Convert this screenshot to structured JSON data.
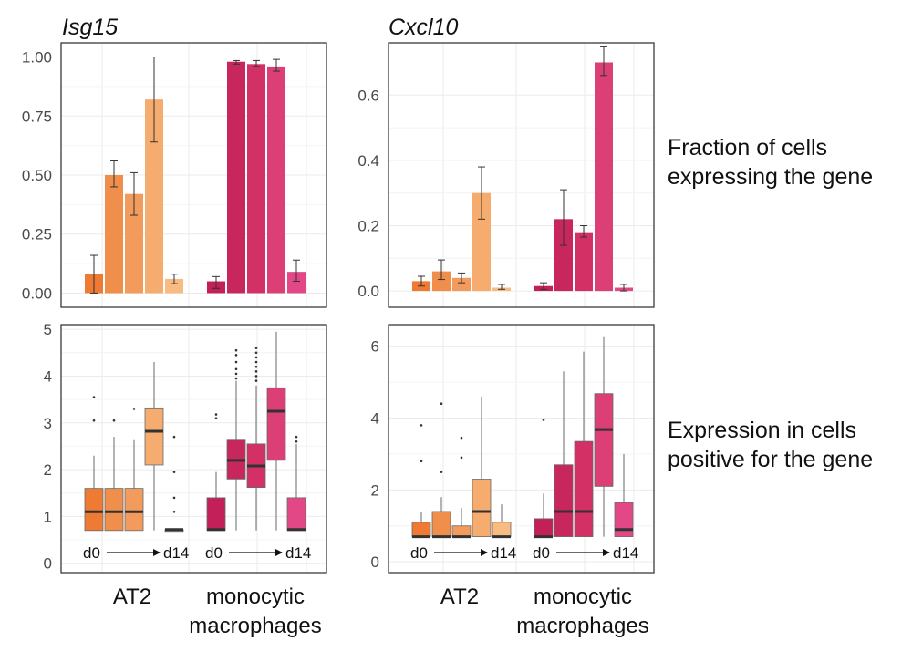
{
  "colors": {
    "at2": [
      "#EE7A33",
      "#F08E4B",
      "#F29B5C",
      "#F6AC6E",
      "#F8BB82"
    ],
    "macro": [
      "#C31F59",
      "#C7275D",
      "#D33066",
      "#DC3E76",
      "#E24885"
    ],
    "frame": "#3a3a3a",
    "grid": "#ebebeb",
    "errorbar": "#333333",
    "median": "#333333"
  },
  "row_labels": {
    "fraction": [
      "Fraction of cells",
      "expressing the gene"
    ],
    "expression": [
      "Expression in cells",
      "positive for the gene"
    ]
  },
  "category_labels": {
    "at2": [
      "AT2"
    ],
    "macro": [
      "monocytic",
      "macrophages"
    ]
  },
  "timeline": {
    "start": "d0",
    "end": "d14"
  },
  "chart_data": [
    {
      "type": "bar",
      "gene": "Isg15",
      "title": "Isg15",
      "ylim": [
        -0.06,
        1.06
      ],
      "yticks": [
        "0.00",
        "0.25",
        "0.50",
        "0.75",
        "1.00"
      ],
      "ytick_values": [
        0,
        0.25,
        0.5,
        0.75,
        1.0
      ],
      "groups": [
        {
          "name": "AT2",
          "values": [
            0.08,
            0.5,
            0.42,
            0.82,
            0.06
          ],
          "err_low": [
            0.0,
            0.45,
            0.33,
            0.64,
            0.04
          ],
          "err_high": [
            0.16,
            0.56,
            0.51,
            1.0,
            0.08
          ]
        },
        {
          "name": "monocytic macrophages",
          "values": [
            0.05,
            0.98,
            0.97,
            0.96,
            0.09
          ],
          "err_low": [
            0.02,
            0.97,
            0.96,
            0.94,
            0.05
          ],
          "err_high": [
            0.07,
            0.985,
            0.985,
            0.99,
            0.14
          ]
        }
      ]
    },
    {
      "type": "bar",
      "gene": "Cxcl10",
      "title": "Cxcl10",
      "ylim": [
        -0.05,
        0.76
      ],
      "yticks": [
        "0.0",
        "0.2",
        "0.4",
        "0.6"
      ],
      "ytick_values": [
        0,
        0.2,
        0.4,
        0.6
      ],
      "groups": [
        {
          "name": "AT2",
          "values": [
            0.03,
            0.06,
            0.04,
            0.3,
            0.01
          ],
          "err_low": [
            0.015,
            0.035,
            0.025,
            0.22,
            0.005
          ],
          "err_high": [
            0.045,
            0.095,
            0.055,
            0.38,
            0.02
          ]
        },
        {
          "name": "monocytic macrophages",
          "values": [
            0.015,
            0.22,
            0.18,
            0.7,
            0.01
          ],
          "err_low": [
            0.005,
            0.14,
            0.165,
            0.66,
            0.0
          ],
          "err_high": [
            0.025,
            0.31,
            0.2,
            0.75,
            0.02
          ]
        }
      ]
    },
    {
      "type": "box",
      "gene": "Isg15",
      "ylim": [
        -0.2,
        5.1
      ],
      "yticks": [
        "0",
        "1",
        "2",
        "3",
        "4",
        "5"
      ],
      "ytick_values": [
        0,
        1,
        2,
        3,
        4,
        5
      ],
      "groups": [
        {
          "name": "AT2",
          "boxes": [
            {
              "min": 0.7,
              "q1": 0.7,
              "median": 1.1,
              "q3": 1.6,
              "max": 2.3,
              "outliers": [
                3.05,
                3.55
              ]
            },
            {
              "min": 0.7,
              "q1": 0.7,
              "median": 1.1,
              "q3": 1.6,
              "max": 2.7,
              "outliers": [
                3.05
              ]
            },
            {
              "min": 0.7,
              "q1": 0.7,
              "median": 1.1,
              "q3": 1.6,
              "max": 2.65,
              "outliers": [
                3.3
              ]
            },
            {
              "min": 0.7,
              "q1": 2.1,
              "median": 2.82,
              "q3": 3.32,
              "max": 4.3,
              "outliers": []
            },
            {
              "min": 0.7,
              "q1": 0.7,
              "median": 0.72,
              "q3": 0.72,
              "max": 0.72,
              "outliers": [
                1.1,
                1.4,
                1.95,
                2.7
              ]
            }
          ]
        },
        {
          "name": "monocytic macrophages",
          "boxes": [
            {
              "min": 0.7,
              "q1": 0.7,
              "median": 0.72,
              "q3": 1.4,
              "max": 1.95,
              "outliers": [
                3.1,
                3.18
              ]
            },
            {
              "min": 0.7,
              "q1": 1.8,
              "median": 2.2,
              "q3": 2.65,
              "max": 3.9,
              "outliers": [
                3.95,
                4.05,
                4.15,
                4.3,
                4.45,
                4.55
              ]
            },
            {
              "min": 0.7,
              "q1": 1.62,
              "median": 2.08,
              "q3": 2.55,
              "max": 3.8,
              "outliers": [
                3.9,
                4.0,
                4.1,
                4.2,
                4.3,
                4.4,
                4.5,
                4.6
              ]
            },
            {
              "min": 0.7,
              "q1": 2.2,
              "median": 3.25,
              "q3": 3.75,
              "max": 4.95,
              "outliers": []
            },
            {
              "min": 0.7,
              "q1": 0.7,
              "median": 0.72,
              "q3": 1.4,
              "max": 2.55,
              "outliers": [
                2.6,
                2.7
              ]
            }
          ]
        }
      ]
    },
    {
      "type": "box",
      "gene": "Cxcl10",
      "ylim": [
        -0.3,
        6.6
      ],
      "yticks": [
        "0",
        "2",
        "4",
        "6"
      ],
      "ytick_values": [
        0,
        2,
        4,
        6
      ],
      "groups": [
        {
          "name": "AT2",
          "boxes": [
            {
              "min": 0.7,
              "q1": 0.7,
              "median": 0.7,
              "q3": 1.1,
              "max": 1.4,
              "outliers": [
                2.8,
                3.8
              ]
            },
            {
              "min": 0.7,
              "q1": 0.7,
              "median": 0.7,
              "q3": 1.4,
              "max": 1.8,
              "outliers": [
                2.5,
                4.4
              ]
            },
            {
              "min": 0.7,
              "q1": 0.7,
              "median": 0.7,
              "q3": 1.0,
              "max": 1.5,
              "outliers": [
                2.9,
                3.45
              ]
            },
            {
              "min": 0.7,
              "q1": 0.7,
              "median": 1.4,
              "q3": 2.3,
              "max": 4.6,
              "outliers": []
            },
            {
              "min": 0.7,
              "q1": 0.7,
              "median": 0.7,
              "q3": 1.1,
              "max": 1.6,
              "outliers": []
            }
          ]
        },
        {
          "name": "monocytic macrophages",
          "boxes": [
            {
              "min": 0.7,
              "q1": 0.7,
              "median": 0.7,
              "q3": 1.2,
              "max": 1.9,
              "outliers": [
                3.95
              ]
            },
            {
              "min": 0.7,
              "q1": 0.7,
              "median": 1.4,
              "q3": 2.7,
              "max": 5.3,
              "outliers": []
            },
            {
              "min": 0.7,
              "q1": 0.7,
              "median": 1.4,
              "q3": 3.35,
              "max": 5.85,
              "outliers": []
            },
            {
              "min": 0.7,
              "q1": 2.1,
              "median": 3.68,
              "q3": 4.68,
              "max": 6.25,
              "outliers": []
            },
            {
              "min": 0.7,
              "q1": 0.7,
              "median": 0.9,
              "q3": 1.65,
              "max": 3.0,
              "outliers": []
            }
          ]
        }
      ]
    }
  ]
}
